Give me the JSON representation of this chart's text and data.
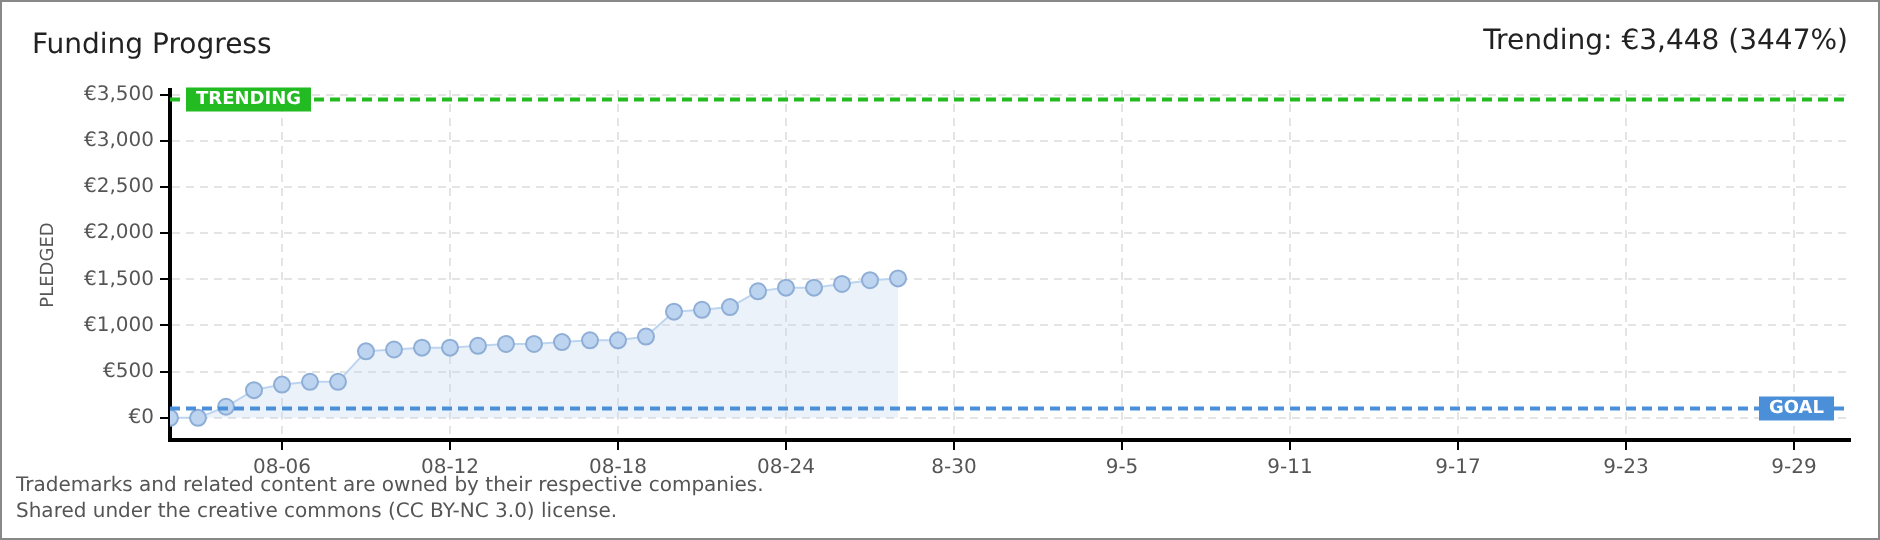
{
  "chart_data": {
    "type": "area",
    "title": "Funding Progress",
    "subtitle": "Trending: €3,448 (3447%)",
    "ylabel": "PLEDGED",
    "x": [
      "--08-02",
      "--08-03",
      "--08-04",
      "--08-05",
      "--08-06",
      "--08-07",
      "--08-08",
      "--08-09",
      "--08-10",
      "--08-11",
      "--08-12",
      "--08-13",
      "--08-14",
      "--08-15",
      "--08-16",
      "--08-17",
      "--08-18",
      "--08-19",
      "--08-20",
      "--08-21",
      "--08-22",
      "--08-23",
      "--08-24",
      "--08-25",
      "--08-26",
      "--08-27",
      "--08-28"
    ],
    "series": [
      {
        "color": "#bcd4f0",
        "values": [
          0,
          0,
          120,
          300,
          360,
          390,
          390,
          720,
          740,
          760,
          760,
          780,
          800,
          800,
          820,
          840,
          840,
          880,
          1150,
          1170,
          1200,
          1370,
          1410,
          1410,
          1450,
          1490,
          1510
        ]
      }
    ],
    "marker": "circle",
    "grid": true,
    "xlim": [
      "--08-02",
      "--10-01"
    ],
    "xticks": [
      {
        "value": "--08-06",
        "label": "08-06"
      },
      {
        "value": "--08-12",
        "label": "08-12"
      },
      {
        "value": "--08-18",
        "label": "08-18"
      },
      {
        "value": "--08-24",
        "label": "08-24"
      },
      {
        "value": "--08-30",
        "label": "8-30"
      },
      {
        "value": "--09-05",
        "label": "9-5"
      },
      {
        "value": "--09-11",
        "label": "9-11"
      },
      {
        "value": "--09-17",
        "label": "9-17"
      },
      {
        "value": "--09-23",
        "label": "9-23"
      },
      {
        "value": "--09-29",
        "label": "9-29"
      }
    ],
    "ylim": [
      -240,
      3550
    ],
    "yticks": [
      {
        "value": 0,
        "label": "€0"
      },
      {
        "value": 500,
        "label": "€500"
      },
      {
        "value": 1000,
        "label": "€1,000"
      },
      {
        "value": 1500,
        "label": "€1,500"
      },
      {
        "value": 2000,
        "label": "€2,000"
      },
      {
        "value": 2500,
        "label": "€2,500"
      },
      {
        "value": 3000,
        "label": "€3,000"
      },
      {
        "value": 3500,
        "label": "€3,500"
      }
    ],
    "ref_lines": [
      {
        "axis": "y",
        "value": 3448,
        "label": "TRENDING",
        "color": "#22bb22",
        "line_style": "dashed"
      },
      {
        "axis": "y",
        "value": 100,
        "label": "GOAL",
        "color": "#4a8fd8",
        "line_style": "dashed"
      }
    ],
    "annotations": [
      "Trademarks and related content are owned by their respective companies.",
      "Shared under the creative commons (CC BY-NC 3.0) license."
    ]
  }
}
